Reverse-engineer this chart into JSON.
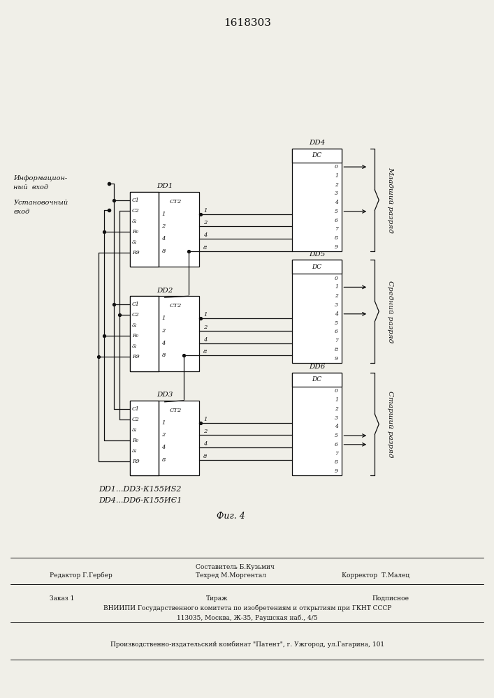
{
  "title": "1618303",
  "fig_caption": "Фиг. 4",
  "note1": "DD1...DD3-К155ИЅ2",
  "note2": "DD4...DD6-К155ИЄ1",
  "label_info1": "Информацион-",
  "label_info2": "ный  вход",
  "label_setup1": "Установочный",
  "label_setup2": "вход",
  "label_mladshiy": "Младший разряд",
  "label_sredniy": "Средний разряд",
  "label_starshiy": "Старший разряд",
  "bottom_line1": "Составитель Б.Кузьмич",
  "bottom_line2": "Техред М.Моргентал",
  "editor": "Редактор Г.Гербер",
  "corrector": "Корректор  Т.Малец",
  "zakaz": "Заказ 1",
  "tirazh": "Тираж",
  "podpisnoe": "Подписное",
  "vniip1": "ВНИИПИ Государственного комитета по изобретениям и открытиям при ГКНТ СССР",
  "vniip2": "113035, Москва, Ж-35, Раушская наб., 4/5",
  "proizv": "Производственно-издательский комбинат \"Патент\", г. Ужгород, ул.Гагарина, 101",
  "bg_color": "#f0efe8",
  "lc": "#111111"
}
